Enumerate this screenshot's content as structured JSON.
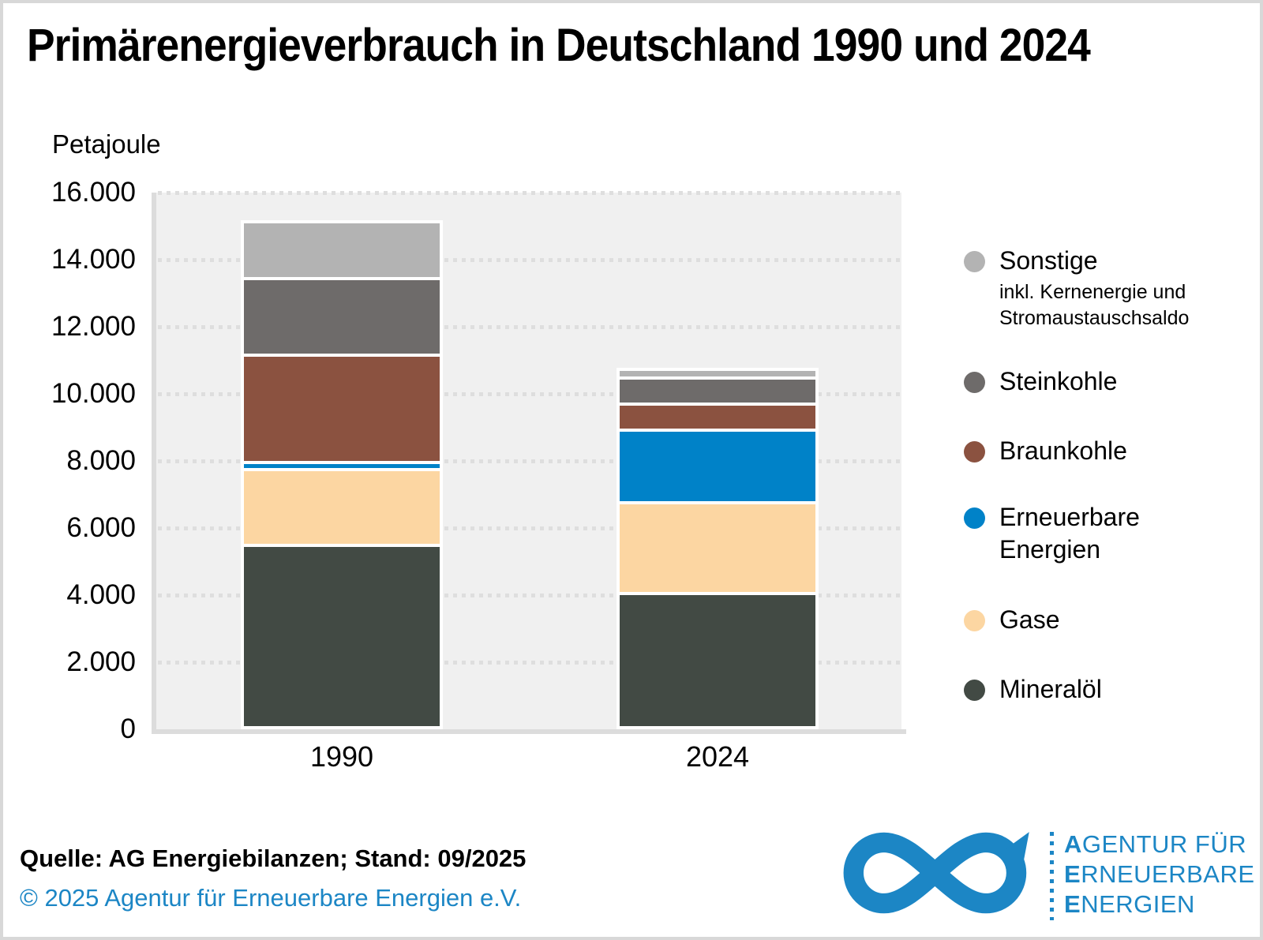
{
  "title": "Primärenergieverbrauch in Deutschland 1990 und 2024",
  "unit_label": "Petajoule",
  "source_line": "Quelle: AG Energiebilanzen; Stand: 09/2025",
  "copyright_line": "© 2025 Agentur für Erneuerbare Energien e.V.",
  "colors": {
    "logo_blue": "#1c86c5",
    "plot_background": "#f0f0f0",
    "gridline": "#dedede",
    "axis_line": "#dcdcdc",
    "frame_border": "#d8d8d8"
  },
  "chart_data": {
    "type": "bar",
    "stacked": true,
    "title": "Primärenergieverbrauch in Deutschland 1990 und 2024",
    "unit": "Petajoule",
    "categories": [
      "1990",
      "2024"
    ],
    "ylim": [
      0,
      16000
    ],
    "ytick_step": 2000,
    "ytick_labels": [
      "0",
      "2.000",
      "4.000",
      "6.000",
      "8.000",
      "10.000",
      "12.000",
      "14.000",
      "16.000"
    ],
    "grid": "horizontal-dotted",
    "legend_position": "right",
    "series_bottom_to_top": [
      {
        "name": "Mineralöl",
        "slug": "mineraloel",
        "color": "#424a44",
        "values": [
          5400,
          3960
        ]
      },
      {
        "name": "Gase",
        "slug": "gase",
        "color": "#fcd6a2",
        "values": [
          2250,
          2710
        ]
      },
      {
        "name": "Erneuerbare Energien",
        "slug": "erneuerbare-energien",
        "color": "#0082c8",
        "values": [
          200,
          2160
        ]
      },
      {
        "name": "Braunkohle",
        "slug": "braunkohle",
        "color": "#8b5240",
        "values": [
          3200,
          770
        ]
      },
      {
        "name": "Steinkohle",
        "slug": "steinkohle",
        "color": "#6e6b6a",
        "values": [
          2300,
          770
        ]
      },
      {
        "name": "Sonstige",
        "slug": "sonstige",
        "color": "#b3b3b3",
        "values": [
          1650,
          230
        ],
        "note": "inkl. Kernenergie und Stromaustauschsaldo"
      }
    ],
    "totals": [
      15000,
      10600
    ]
  },
  "legend": {
    "items": [
      {
        "series": "Sonstige",
        "label_lines": [
          "Sonstige"
        ],
        "note_lines": [
          "inkl. Kernenergie und",
          "Stromaustauschsaldo"
        ]
      },
      {
        "series": "Steinkohle",
        "label_lines": [
          "Steinkohle"
        ]
      },
      {
        "series": "Braunkohle",
        "label_lines": [
          "Braunkohle"
        ]
      },
      {
        "series": "Erneuerbare Energien",
        "label_lines": [
          "Erneuerbare",
          "Energien"
        ]
      },
      {
        "series": "Gase",
        "label_lines": [
          "Gase"
        ]
      },
      {
        "series": "Mineralöl",
        "label_lines": [
          "Mineralöl"
        ]
      }
    ]
  },
  "logo": {
    "lines": [
      {
        "lead": "A",
        "rest": "GENTUR FÜR"
      },
      {
        "lead": "E",
        "rest": "RNEUERBARE"
      },
      {
        "lead": "E",
        "rest": "NERGIEN"
      }
    ]
  }
}
